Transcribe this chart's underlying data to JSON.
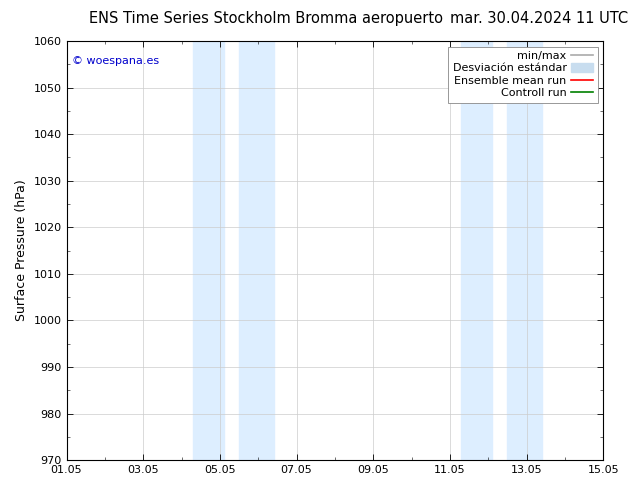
{
  "title_left": "ENS Time Series Stockholm Bromma aeropuerto",
  "title_right": "mar. 30.04.2024 11 UTC",
  "ylabel": "Surface Pressure (hPa)",
  "ylim": [
    970,
    1060
  ],
  "yticks": [
    970,
    980,
    990,
    1000,
    1010,
    1020,
    1030,
    1040,
    1050,
    1060
  ],
  "xtick_labels": [
    "01.05",
    "03.05",
    "05.05",
    "07.05",
    "09.05",
    "11.05",
    "13.05",
    "15.05"
  ],
  "xtick_positions": [
    0,
    2,
    4,
    6,
    8,
    10,
    12,
    14
  ],
  "x_total_days": 14,
  "shaded_bands": [
    {
      "xmin": 3.3,
      "xmax": 4.1,
      "color": "#ddeeff"
    },
    {
      "xmin": 4.5,
      "xmax": 5.4,
      "color": "#ddeeff"
    },
    {
      "xmin": 10.3,
      "xmax": 11.1,
      "color": "#ddeeff"
    },
    {
      "xmin": 11.5,
      "xmax": 12.4,
      "color": "#ddeeff"
    }
  ],
  "watermark": "© woespana.es",
  "watermark_color": "#0000cc",
  "background_color": "#ffffff",
  "plot_bg_color": "#ffffff",
  "legend_label_minmax": "min/max",
  "legend_label_std": "Desviación estándar",
  "legend_label_ens": "Ensemble mean run",
  "legend_label_ctrl": "Controll run",
  "color_minmax": "#aaaaaa",
  "color_std": "#c8ddef",
  "color_ens": "#ff0000",
  "color_ctrl": "#008000",
  "grid_color": "#cccccc",
  "spine_color": "#000000",
  "title_fontsize": 10.5,
  "axis_fontsize": 9,
  "tick_fontsize": 8,
  "legend_fontsize": 8
}
